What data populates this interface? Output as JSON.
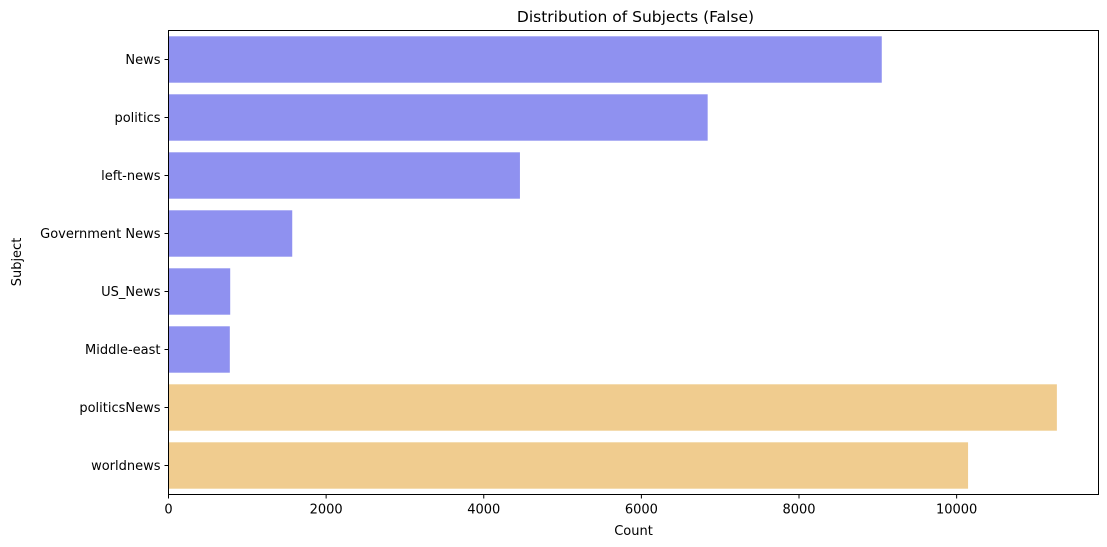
{
  "chart_data": {
    "type": "bar",
    "orientation": "horizontal",
    "title": "Distribution of Subjects (False)",
    "xlabel": "Count",
    "ylabel": "Subject",
    "xlim": [
      0,
      11800
    ],
    "xticks": [
      0,
      2000,
      4000,
      6000,
      8000,
      10000
    ],
    "xtick_labels": [
      "0",
      "2000",
      "4000",
      "6000",
      "8000",
      "10000"
    ],
    "grid": false,
    "categories": [
      "News",
      "politics",
      "left-news",
      "Government News",
      "US_News",
      "Middle-east",
      "politicsNews",
      "worldnews"
    ],
    "values": [
      9050,
      6841,
      4459,
      1570,
      783,
      778,
      11272,
      10145
    ],
    "bar_colors": [
      "#8f91f0",
      "#8f91f0",
      "#8f91f0",
      "#8f91f0",
      "#8f91f0",
      "#8f91f0",
      "#f0cc8f",
      "#f0cc8f"
    ]
  }
}
